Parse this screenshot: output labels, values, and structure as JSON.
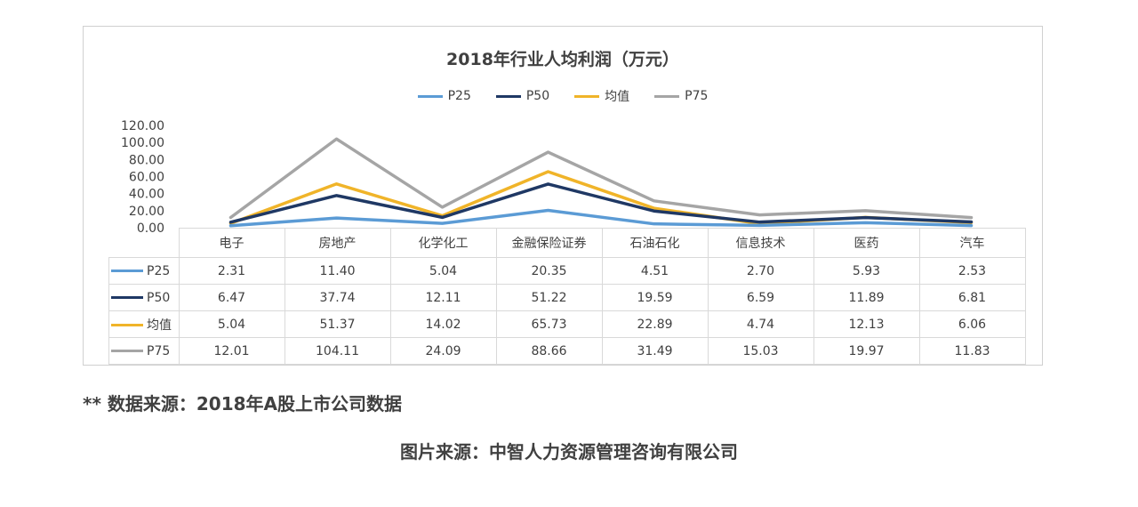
{
  "chart_data": {
    "type": "line",
    "title": "2018年行业人均利润（万元）",
    "categories": [
      "电子",
      "房地产",
      "化学化工",
      "金融保险证券",
      "石油石化",
      "信息技术",
      "医药",
      "汽车"
    ],
    "series": [
      {
        "name": "P25",
        "color": "#5b9bd5",
        "values": [
          2.31,
          11.4,
          5.04,
          20.35,
          4.51,
          2.7,
          5.93,
          2.53
        ],
        "labels": [
          "2.31",
          "11.40",
          "5.04",
          "20.35",
          "4.51",
          "2.70",
          "5.93",
          "2.53"
        ]
      },
      {
        "name": "P50",
        "color": "#1f3864",
        "values": [
          6.47,
          37.74,
          12.11,
          51.22,
          19.59,
          6.59,
          11.89,
          6.81
        ],
        "labels": [
          "6.47",
          "37.74",
          "12.11",
          "51.22",
          "19.59",
          "6.59",
          "11.89",
          "6.81"
        ]
      },
      {
        "name": "均值",
        "color": "#f0b429",
        "values": [
          5.04,
          51.37,
          14.02,
          65.73,
          22.89,
          4.74,
          12.13,
          6.06
        ],
        "labels": [
          "5.04",
          "51.37",
          "14.02",
          "65.73",
          "22.89",
          "4.74",
          "12.13",
          "6.06"
        ]
      },
      {
        "name": "P75",
        "color": "#a5a5a5",
        "values": [
          12.01,
          104.11,
          24.09,
          88.66,
          31.49,
          15.03,
          19.97,
          11.83
        ],
        "labels": [
          "12.01",
          "104.11",
          "24.09",
          "88.66",
          "31.49",
          "15.03",
          "19.97",
          "11.83"
        ]
      }
    ],
    "ylim": [
      0,
      120
    ],
    "yticks": [
      "0.00",
      "20.00",
      "40.00",
      "60.00",
      "80.00",
      "100.00",
      "120.00"
    ],
    "legend_position": "top-center",
    "grid": false,
    "xlabel": "",
    "ylabel": ""
  },
  "footnote": "**  数据来源：2018年A股上市公司数据",
  "source": "图片来源：中智人力资源管理咨询有限公司"
}
